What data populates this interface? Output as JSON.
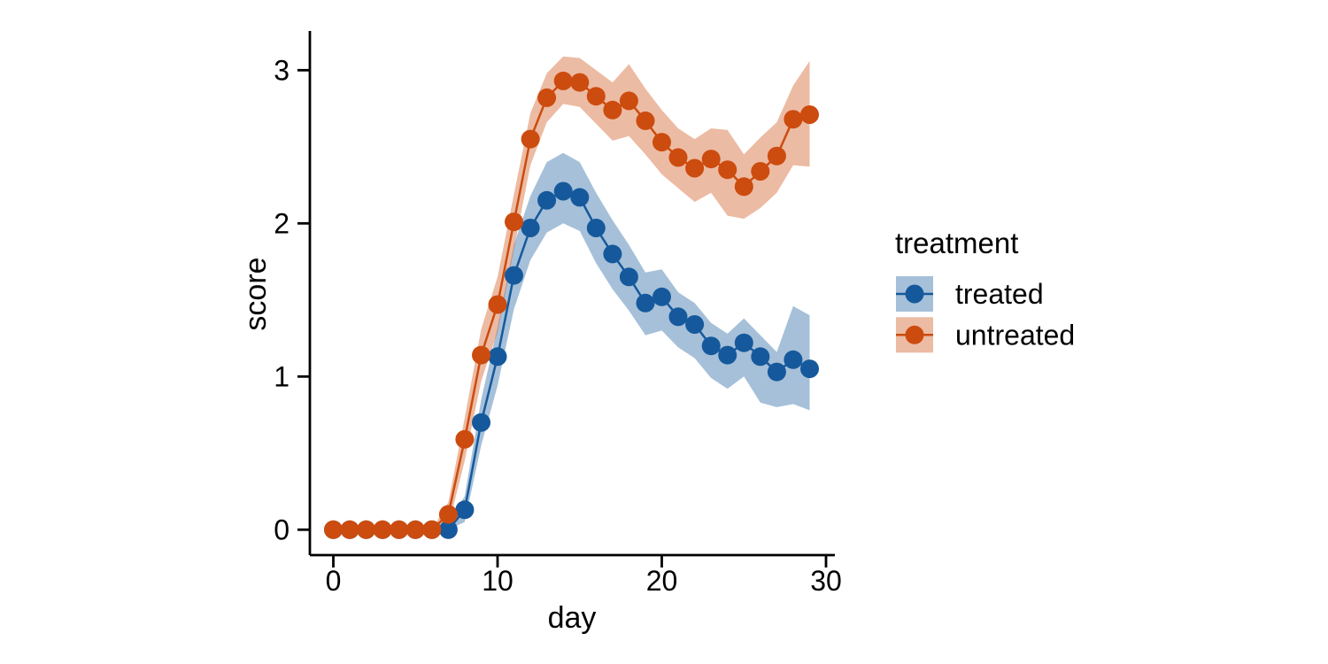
{
  "figure": {
    "background": "#ffffff"
  },
  "chart_data": {
    "type": "line",
    "title": "",
    "xlabel": "day",
    "ylabel": "score",
    "x_ticks": [
      0,
      10,
      20,
      30
    ],
    "y_ticks": [
      0,
      1,
      2,
      3
    ],
    "xlim": [
      -1.4,
      30.5
    ],
    "ylim": [
      -0.17,
      3.26
    ],
    "grid": false,
    "axis_color": "#000000",
    "legend": {
      "title": "treatment",
      "position": "right",
      "entries": [
        {
          "label": "treated",
          "color": "#15599C",
          "ribbon_fill": "rgba(21,89,156,0.38)"
        },
        {
          "label": "untreated",
          "color": "#CC4B0E",
          "ribbon_fill": "rgba(204,75,14,0.38)"
        }
      ]
    },
    "x": [
      0,
      1,
      2,
      3,
      4,
      5,
      6,
      7,
      8,
      9,
      10,
      11,
      12,
      13,
      14,
      15,
      16,
      17,
      18,
      19,
      20,
      21,
      22,
      23,
      24,
      25,
      26,
      27,
      28,
      29
    ],
    "series": [
      {
        "name": "treated",
        "color": "#15599C",
        "ribbon_fill": "rgba(21,89,156,0.38)",
        "values": [
          0,
          0,
          0,
          0,
          0,
          0,
          0,
          0,
          0.13,
          0.7,
          1.13,
          1.66,
          1.97,
          2.15,
          2.21,
          2.17,
          1.97,
          1.8,
          1.65,
          1.48,
          1.52,
          1.39,
          1.34,
          1.2,
          1.14,
          1.22,
          1.13,
          1.03,
          1.11,
          1.05
        ],
        "lower": [
          0,
          0,
          0,
          0,
          0,
          0,
          0,
          0,
          0.05,
          0.55,
          0.94,
          1.44,
          1.76,
          1.94,
          2.0,
          1.95,
          1.74,
          1.57,
          1.43,
          1.27,
          1.3,
          1.19,
          1.12,
          0.99,
          0.92,
          1.0,
          0.83,
          0.8,
          0.82,
          0.78
        ],
        "upper": [
          0,
          0,
          0,
          0,
          0,
          0,
          0,
          0.04,
          0.22,
          0.85,
          1.32,
          1.86,
          2.18,
          2.4,
          2.46,
          2.4,
          2.2,
          2.02,
          1.86,
          1.68,
          1.7,
          1.55,
          1.48,
          1.35,
          1.28,
          1.38,
          1.27,
          1.16,
          1.46,
          1.4
        ]
      },
      {
        "name": "untreated",
        "color": "#CC4B0E",
        "ribbon_fill": "rgba(204,75,14,0.38)",
        "values": [
          0,
          0,
          0,
          0,
          0,
          0,
          0,
          0.1,
          0.59,
          1.14,
          1.47,
          2.01,
          2.55,
          2.82,
          2.93,
          2.92,
          2.83,
          2.74,
          2.8,
          2.67,
          2.53,
          2.43,
          2.36,
          2.42,
          2.35,
          2.24,
          2.34,
          2.44,
          2.68,
          2.71
        ],
        "lower": [
          0,
          0,
          0,
          0,
          0,
          0,
          0,
          0.02,
          0.45,
          0.97,
          1.29,
          1.83,
          2.38,
          2.66,
          2.78,
          2.76,
          2.65,
          2.54,
          2.57,
          2.45,
          2.32,
          2.23,
          2.14,
          2.2,
          2.05,
          2.03,
          2.1,
          2.2,
          2.38,
          2.37
        ],
        "upper": [
          0,
          0,
          0,
          0,
          0,
          0,
          0,
          0.18,
          0.73,
          1.31,
          1.65,
          2.19,
          2.72,
          2.98,
          3.09,
          3.08,
          3.0,
          2.92,
          3.04,
          2.88,
          2.74,
          2.62,
          2.55,
          2.62,
          2.61,
          2.45,
          2.56,
          2.66,
          2.9,
          3.06
        ]
      }
    ]
  }
}
